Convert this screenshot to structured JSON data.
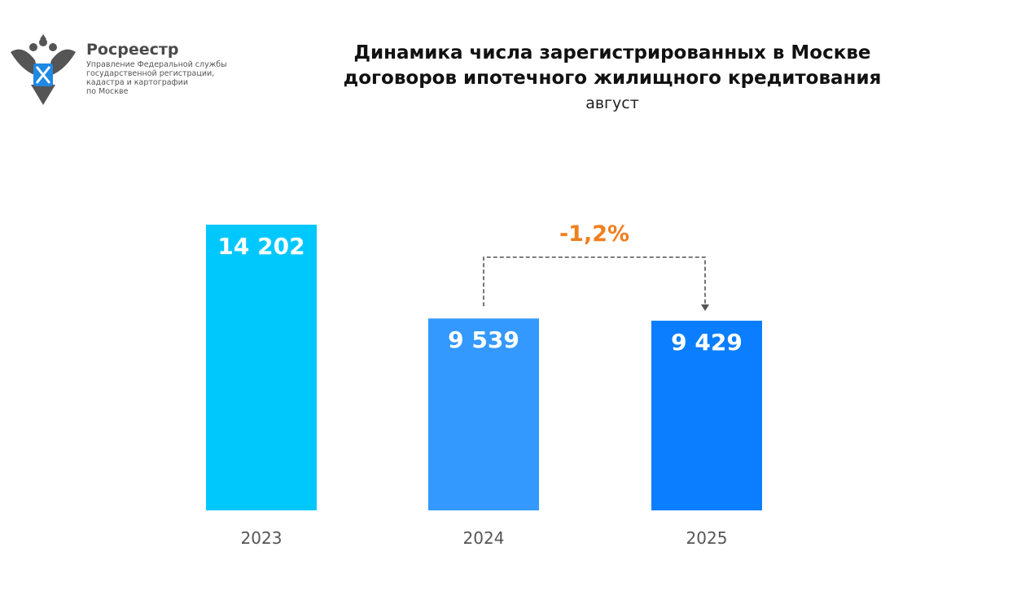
{
  "header": {
    "brand": "Росреестр",
    "org_lines": [
      "Управление Федеральной службы",
      "государственной регистрации,",
      "кадастра и картографии",
      "по Москве"
    ]
  },
  "chart_data": {
    "type": "bar",
    "title": "Динамика числа зарегистрированных в Москве договоров ипотечного жилищного кредитования",
    "title_lines": [
      "Динамика числа зарегистрированных в Москве",
      "договоров ипотечного жилищного кредитования"
    ],
    "subtitle": "август",
    "categories": [
      "2023",
      "2024",
      "2025"
    ],
    "values": [
      14202,
      9539,
      9429
    ],
    "value_labels": [
      "14 202",
      "9 539",
      "9 429"
    ],
    "colors": [
      "#00C8FD",
      "#3399FE",
      "#0A7EFE"
    ],
    "ylim": [
      0,
      14202
    ],
    "grid": false,
    "annotation": {
      "text": "-1,2%",
      "from": "2024",
      "to": "2025",
      "color": "#F07F1E"
    }
  }
}
